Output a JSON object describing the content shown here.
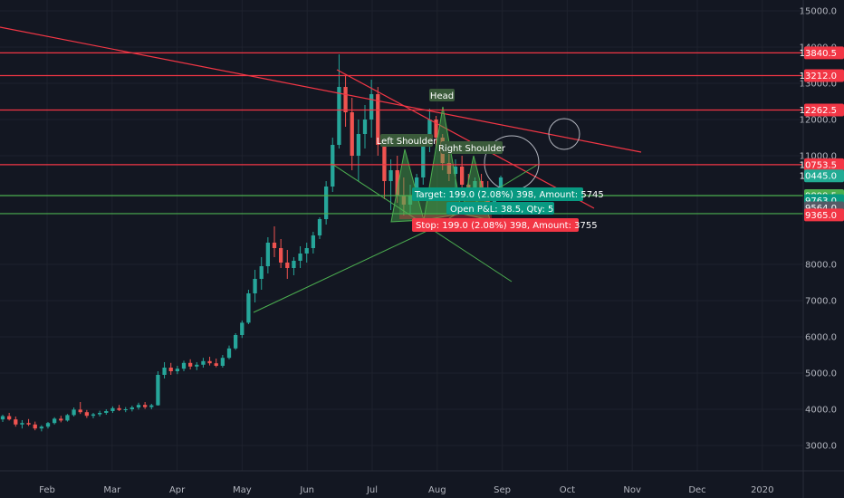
{
  "chart_data": {
    "type": "candlestick",
    "x_ticks": [
      "Feb",
      "Mar",
      "Apr",
      "May",
      "Jun",
      "Jul",
      "Aug",
      "Sep",
      "Oct",
      "Nov",
      "Dec",
      "2020"
    ],
    "y_ticks": [
      "3000.0",
      "4000.0",
      "5000.0",
      "6000.0",
      "7000.0",
      "8000.0",
      "11000.0",
      "12000.0",
      "13000.0",
      "14000.0",
      "15000.0"
    ],
    "ylim": [
      2300,
      15300
    ],
    "horizontal_levels": [
      {
        "value": 13840.5,
        "label": "13840.5",
        "color": "#f23645"
      },
      {
        "value": 13212.0,
        "label": "13212.0",
        "color": "#f23645"
      },
      {
        "value": 12262.5,
        "label": "12262.5",
        "color": "#f23645"
      },
      {
        "value": 10753.5,
        "label": "10753.5",
        "color": "#f23645"
      },
      {
        "value": 9899.5,
        "label": "9899.5",
        "color": "#4caf50"
      },
      {
        "value": 9401.0,
        "label": "9401.0",
        "color": "#4caf50"
      }
    ],
    "price_badges": [
      {
        "value": 10445.0,
        "label": "10445.0",
        "color": "#22ab94"
      },
      {
        "value": 9763.0,
        "label": "9763.0",
        "color": "#089981"
      },
      {
        "value": 9564.0,
        "label": "9564.0",
        "color": "#555a66"
      },
      {
        "value": 9365.0,
        "label": "9365.0",
        "color": "#f23645"
      }
    ],
    "pattern_labels": [
      {
        "text": "Head",
        "color": "#3a5a3a"
      },
      {
        "text": "Left Shoulder",
        "color": "#3a5a3a"
      },
      {
        "text": "Right Shoulder",
        "color": "#3a5a3a"
      }
    ],
    "position_labels": {
      "target": "Target: 199.0 (2.08%) 398, Amount: 5745",
      "open": "Open P&L: 38.5, Qty: 5",
      "stop": "Stop: 199.0 (2.08%) 398, Amount: 3755"
    },
    "colors": {
      "up": "#26a69a",
      "down": "#ef5350",
      "background": "#131722",
      "resistance": "#f23645",
      "support": "#4caf50"
    },
    "series": [
      {
        "name": "",
        "values": [
          [
            3720,
            3850,
            3650,
            3810
          ],
          [
            3810,
            3900,
            3690,
            3720
          ],
          [
            3720,
            3800,
            3520,
            3580
          ],
          [
            3580,
            3700,
            3470,
            3620
          ],
          [
            3620,
            3730,
            3540,
            3580
          ],
          [
            3580,
            3660,
            3420,
            3470
          ],
          [
            3470,
            3560,
            3390,
            3520
          ],
          [
            3520,
            3650,
            3470,
            3620
          ],
          [
            3620,
            3780,
            3580,
            3740
          ],
          [
            3740,
            3820,
            3640,
            3690
          ],
          [
            3690,
            3870,
            3660,
            3840
          ],
          [
            3840,
            4050,
            3800,
            3990
          ],
          [
            3990,
            4200,
            3870,
            3920
          ],
          [
            3920,
            3980,
            3760,
            3820
          ],
          [
            3820,
            3900,
            3750,
            3860
          ],
          [
            3860,
            3960,
            3800,
            3900
          ],
          [
            3900,
            4000,
            3850,
            3950
          ],
          [
            3950,
            4080,
            3900,
            4030
          ],
          [
            4030,
            4120,
            3950,
            3980
          ],
          [
            3980,
            4060,
            3920,
            4000
          ],
          [
            4000,
            4100,
            3940,
            4050
          ],
          [
            4050,
            4180,
            3990,
            4120
          ],
          [
            4120,
            4200,
            4010,
            4060
          ],
          [
            4060,
            4150,
            4000,
            4110
          ],
          [
            4110,
            5050,
            4100,
            4950
          ],
          [
            4950,
            5300,
            4850,
            5150
          ],
          [
            5150,
            5280,
            4950,
            5050
          ],
          [
            5050,
            5200,
            4970,
            5120
          ],
          [
            5120,
            5340,
            5050,
            5280
          ],
          [
            5280,
            5380,
            5100,
            5180
          ],
          [
            5180,
            5300,
            5080,
            5230
          ],
          [
            5230,
            5420,
            5150,
            5330
          ],
          [
            5330,
            5450,
            5210,
            5270
          ],
          [
            5270,
            5400,
            5160,
            5200
          ],
          [
            5200,
            5500,
            5150,
            5420
          ],
          [
            5420,
            5760,
            5380,
            5680
          ],
          [
            5680,
            6100,
            5640,
            6050
          ],
          [
            6050,
            6450,
            5970,
            6390
          ],
          [
            6390,
            7300,
            6350,
            7200
          ],
          [
            7200,
            7850,
            6950,
            7600
          ],
          [
            7600,
            8200,
            7300,
            7950
          ],
          [
            7950,
            8750,
            7750,
            8600
          ],
          [
            8600,
            9050,
            8200,
            8450
          ],
          [
            8450,
            8700,
            7900,
            8050
          ],
          [
            8050,
            8400,
            7600,
            7900
          ],
          [
            7900,
            8200,
            7700,
            8100
          ],
          [
            8100,
            8500,
            7900,
            8300
          ],
          [
            8300,
            8600,
            8050,
            8450
          ],
          [
            8450,
            8900,
            8300,
            8800
          ],
          [
            8800,
            9300,
            8700,
            9250
          ],
          [
            9250,
            10300,
            9100,
            10150
          ],
          [
            10150,
            11500,
            10000,
            11300
          ],
          [
            11300,
            13800,
            11200,
            12900
          ],
          [
            12900,
            13200,
            11800,
            12200
          ],
          [
            12200,
            12600,
            10600,
            11000
          ],
          [
            11000,
            12000,
            10300,
            11600
          ],
          [
            11600,
            12400,
            11200,
            12000
          ],
          [
            12000,
            13100,
            11500,
            12700
          ],
          [
            12700,
            12900,
            11000,
            11300
          ],
          [
            11300,
            11500,
            9800,
            10300
          ],
          [
            10300,
            10900,
            9500,
            10600
          ],
          [
            10600,
            11000,
            9700,
            9900
          ],
          [
            9900,
            10400,
            9350,
            9650
          ],
          [
            9650,
            10200,
            9400,
            9900
          ],
          [
            9900,
            10500,
            9750,
            10400
          ],
          [
            10400,
            11500,
            10200,
            11300
          ],
          [
            11300,
            12300,
            11100,
            12000
          ],
          [
            12000,
            12100,
            11200,
            11500
          ],
          [
            11500,
            11600,
            10600,
            10800
          ],
          [
            10800,
            11200,
            10300,
            10500
          ],
          [
            10500,
            10900,
            10100,
            10700
          ],
          [
            10700,
            11000,
            10000,
            10200
          ],
          [
            10200,
            10500,
            9800,
            10100
          ],
          [
            10100,
            10400,
            9850,
            10300
          ],
          [
            10300,
            10500,
            9950,
            10000
          ],
          [
            10000,
            10300,
            9550,
            9650
          ],
          [
            9650,
            10100,
            9450,
            10050
          ],
          [
            10050,
            10450,
            9900,
            10400
          ]
        ]
      }
    ]
  }
}
